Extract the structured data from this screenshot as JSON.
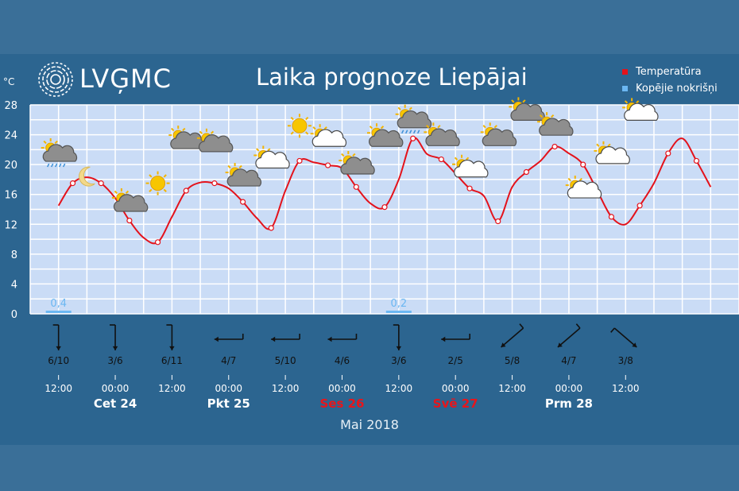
{
  "header": {
    "logo_text": "LVĢMC",
    "title": "Laika prognoze Liepājai",
    "unit": "°C",
    "month": "Mai 2018"
  },
  "legend": [
    {
      "label": "Temperatūra",
      "color": "#e4121b"
    },
    {
      "label": "Kopējie nokrišņi",
      "color": "#6bb7f2"
    }
  ],
  "chart_data": {
    "type": "line",
    "title": "Laika prognoze Liepājai",
    "ylabel": "°C",
    "ylim": [
      0,
      28
    ],
    "yticks": [
      0,
      4,
      8,
      12,
      16,
      20,
      24,
      28
    ],
    "grid": true,
    "legend_position": "top-right",
    "x": [
      6,
      9,
      12,
      15,
      18,
      21,
      24,
      27,
      30,
      33,
      36,
      39,
      42,
      45,
      48,
      51,
      54,
      57,
      60,
      63,
      66,
      69,
      72,
      75,
      78,
      81,
      84,
      87,
      90,
      93,
      96,
      99,
      102,
      105,
      108,
      111,
      114,
      117,
      120,
      123,
      126,
      129,
      132,
      135,
      138,
      141,
      144
    ],
    "series": [
      {
        "name": "Temperatūra",
        "color": "#e4121b",
        "values": [
          14.5,
          17.5,
          18.3,
          17.5,
          15.5,
          12.5,
          10.2,
          9.6,
          13.0,
          16.5,
          17.6,
          17.5,
          16.8,
          15.0,
          12.8,
          11.5,
          16.5,
          20.5,
          20.3,
          19.9,
          19.5,
          17.0,
          14.8,
          14.3,
          18.0,
          23.5,
          21.4,
          20.7,
          18.8,
          16.8,
          15.8,
          12.4,
          17.0,
          19.0,
          20.5,
          22.4,
          21.5,
          20.0,
          16.5,
          13.0,
          12.0,
          14.5,
          17.5,
          21.5,
          23.5,
          20.5,
          17.0
        ]
      },
      {
        "name": "Kopējie nokrišņi",
        "color": "#6bb7f2",
        "type": "bar",
        "points": [
          {
            "x": 6,
            "value": "0,4"
          },
          {
            "x": 78,
            "value": "0,2"
          }
        ]
      }
    ],
    "time_ticks": [
      "12:00",
      "00:00",
      "12:00",
      "00:00",
      "12:00",
      "00:00",
      "12:00",
      "00:00",
      "12:00",
      "00:00",
      "12:00"
    ],
    "day_labels": [
      {
        "label": "Cet 24",
        "color": "#ffffff"
      },
      {
        "label": "Pkt 25",
        "color": "#ffffff"
      },
      {
        "label": "Ses 26",
        "color": "#e8151b"
      },
      {
        "label": "Svē 27",
        "color": "#e8151b"
      },
      {
        "label": "Prm 28",
        "color": "#ffffff"
      }
    ],
    "wind": [
      {
        "label": "6/10",
        "dir": "N"
      },
      {
        "label": "3/6",
        "dir": "N"
      },
      {
        "label": "6/11",
        "dir": "N"
      },
      {
        "label": "4/7",
        "dir": "E"
      },
      {
        "label": "5/10",
        "dir": "E"
      },
      {
        "label": "4/6",
        "dir": "E"
      },
      {
        "label": "3/6",
        "dir": "N"
      },
      {
        "label": "2/5",
        "dir": "E"
      },
      {
        "label": "5/8",
        "dir": "NE"
      },
      {
        "label": "4/7",
        "dir": "NE"
      },
      {
        "label": "3/8",
        "dir": "NW"
      }
    ],
    "weather_icons": [
      {
        "x": 6,
        "y": 21.5,
        "icon": "partly-cloudy-rain-icon"
      },
      {
        "x": 12,
        "y": 18.5,
        "icon": "moon-icon"
      },
      {
        "x": 21,
        "y": 14.8,
        "icon": "partly-cloudy-icon"
      },
      {
        "x": 27,
        "y": 17.5,
        "icon": "sun-icon"
      },
      {
        "x": 33,
        "y": 23.2,
        "icon": "partly-cloudy-icon"
      },
      {
        "x": 39,
        "y": 22.8,
        "icon": "partly-cloudy-icon"
      },
      {
        "x": 45,
        "y": 18.2,
        "icon": "partly-cloudy-icon"
      },
      {
        "x": 51,
        "y": 20.6,
        "icon": "partly-sunny-icon"
      },
      {
        "x": 57,
        "y": 25.2,
        "icon": "sun-icon"
      },
      {
        "x": 63,
        "y": 23.5,
        "icon": "partly-sunny-icon"
      },
      {
        "x": 69,
        "y": 19.8,
        "icon": "partly-cloudy-icon"
      },
      {
        "x": 75,
        "y": 23.5,
        "icon": "partly-cloudy-icon"
      },
      {
        "x": 81,
        "y": 26.0,
        "icon": "partly-cloudy-rain-icon"
      },
      {
        "x": 87,
        "y": 23.6,
        "icon": "partly-cloudy-icon"
      },
      {
        "x": 93,
        "y": 19.4,
        "icon": "partly-sunny-icon"
      },
      {
        "x": 99,
        "y": 23.6,
        "icon": "partly-cloudy-icon"
      },
      {
        "x": 105,
        "y": 27.0,
        "icon": "partly-cloudy-icon"
      },
      {
        "x": 111,
        "y": 25.0,
        "icon": "partly-cloudy-icon"
      },
      {
        "x": 117,
        "y": 16.6,
        "icon": "partly-sunny-icon"
      },
      {
        "x": 123,
        "y": 21.2,
        "icon": "partly-sunny-icon"
      },
      {
        "x": 129,
        "y": 27.0,
        "icon": "partly-sunny-icon"
      }
    ]
  }
}
